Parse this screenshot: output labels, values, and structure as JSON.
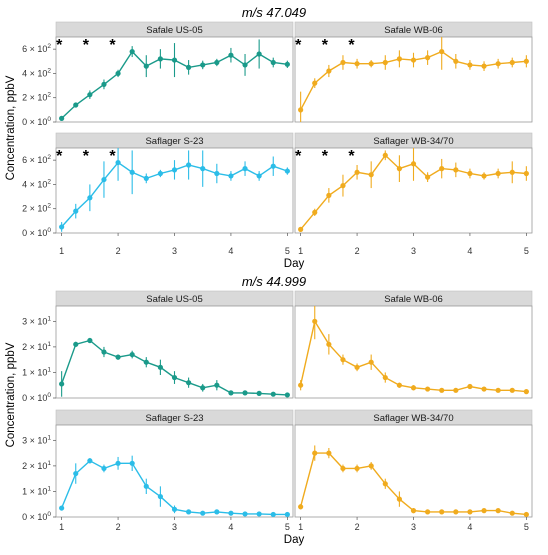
{
  "chart_data": [
    {
      "type": "line",
      "title": "m/s 47.049",
      "ylabel": "Concentration, ppbV",
      "xlabel": "Day",
      "x": [
        1,
        1.25,
        1.5,
        1.75,
        2,
        2.25,
        2.5,
        2.75,
        3,
        3.25,
        3.5,
        3.75,
        4,
        4.25,
        4.5,
        4.75,
        5
      ],
      "xticks": [
        "1",
        "2",
        "3",
        "4",
        "5"
      ],
      "ylim": [
        0,
        700
      ],
      "yticks": [
        {
          "value": 0,
          "base": "0 × 10",
          "exp": "0"
        },
        {
          "value": 200,
          "base": "2 × 10",
          "exp": "2"
        },
        {
          "value": 400,
          "base": "4 × 10",
          "exp": "2"
        },
        {
          "value": 600,
          "base": "6 × 10",
          "exp": "2"
        }
      ],
      "grid": false,
      "panels": [
        {
          "name": "Safale US-05",
          "color": "#1a9a8a",
          "stars": "* * *",
          "values": [
            30,
            140,
            225,
            310,
            400,
            580,
            460,
            520,
            510,
            450,
            470,
            490,
            550,
            470,
            560,
            490,
            475
          ],
          "errors": [
            10,
            20,
            35,
            40,
            30,
            45,
            90,
            80,
            140,
            60,
            35,
            30,
            60,
            90,
            120,
            40,
            30
          ]
        },
        {
          "name": "Safale WB-06",
          "color": "#f0ab1e",
          "stars": "* * *",
          "values": [
            100,
            320,
            420,
            490,
            480,
            480,
            490,
            520,
            510,
            530,
            580,
            500,
            470,
            460,
            480,
            490,
            500
          ],
          "errors": [
            150,
            40,
            50,
            60,
            40,
            30,
            60,
            70,
            60,
            60,
            150,
            60,
            40,
            40,
            40,
            40,
            50
          ]
        },
        {
          "name": "Saflager S-23",
          "color": "#2bbde8",
          "stars": "* * *",
          "values": [
            50,
            180,
            290,
            440,
            580,
            500,
            450,
            490,
            520,
            560,
            530,
            490,
            470,
            530,
            470,
            550,
            510
          ],
          "errors": [
            40,
            60,
            110,
            150,
            150,
            180,
            40,
            30,
            80,
            120,
            150,
            80,
            40,
            60,
            40,
            80,
            30
          ]
        },
        {
          "name": "Saflager WB-34/70",
          "color": "#f0ab1e",
          "stars": "* * *",
          "values": [
            30,
            170,
            310,
            390,
            500,
            480,
            640,
            530,
            570,
            460,
            530,
            520,
            490,
            470,
            490,
            500,
            490
          ],
          "errors": [
            10,
            30,
            60,
            90,
            60,
            110,
            40,
            110,
            140,
            40,
            80,
            60,
            40,
            30,
            40,
            90,
            60
          ]
        }
      ]
    },
    {
      "type": "line",
      "title": "m/s 44.999",
      "ylabel": "Concentration, ppbV",
      "xlabel": "Day",
      "x": [
        1,
        1.25,
        1.5,
        1.75,
        2,
        2.25,
        2.5,
        2.75,
        3,
        3.25,
        3.5,
        3.75,
        4,
        4.25,
        4.5,
        4.75,
        5
      ],
      "xticks": [
        "1",
        "2",
        "3",
        "4",
        "5"
      ],
      "ylim": [
        0,
        36
      ],
      "yticks": [
        {
          "value": 0,
          "base": "0 × 10",
          "exp": "0"
        },
        {
          "value": 10,
          "base": "1 × 10",
          "exp": "1"
        },
        {
          "value": 20,
          "base": "2 × 10",
          "exp": "1"
        },
        {
          "value": 30,
          "base": "3 × 10",
          "exp": "1"
        }
      ],
      "grid": false,
      "panels": [
        {
          "name": "Safale US-05",
          "color": "#1a9a8a",
          "stars": "",
          "values": [
            5.5,
            21,
            22.5,
            18,
            16,
            17,
            14,
            12,
            8,
            6,
            4,
            5,
            2,
            2,
            1.8,
            1.5,
            1.2
          ],
          "errors": [
            5,
            1,
            1,
            2,
            1,
            1.5,
            2,
            3,
            2.5,
            2,
            1.5,
            2,
            0.5,
            0.5,
            0.5,
            0.5,
            0.3
          ]
        },
        {
          "name": "Safale WB-06",
          "color": "#f0ab1e",
          "stars": "",
          "values": [
            5,
            30,
            21,
            15,
            12,
            14,
            8,
            5,
            4,
            3.5,
            3,
            3,
            4.5,
            3.5,
            3,
            3,
            2.5
          ],
          "errors": [
            2,
            7,
            4,
            2,
            1.5,
            3,
            2,
            1,
            1,
            0.5,
            0.5,
            0.5,
            0.8,
            0.5,
            0.5,
            0.5,
            0.5
          ]
        },
        {
          "name": "Saflager S-23",
          "color": "#2bbde8",
          "stars": "",
          "values": [
            3.5,
            17,
            22,
            19,
            21,
            21,
            12,
            8,
            3,
            2,
            1.5,
            2,
            1.5,
            1.2,
            1.2,
            1,
            1
          ],
          "errors": [
            1,
            4,
            1,
            1.5,
            2.5,
            3,
            3,
            4,
            1.5,
            0.5,
            0.5,
            0.5,
            0.3,
            0.3,
            0.3,
            0.3,
            0.3
          ]
        },
        {
          "name": "Saflager WB-34/70",
          "color": "#f0ab1e",
          "stars": "",
          "values": [
            4,
            25,
            25,
            19,
            19,
            20,
            13,
            7,
            2.5,
            2,
            2,
            2,
            2,
            2.5,
            2.5,
            1.5,
            1
          ],
          "errors": [
            1,
            3,
            2,
            1.5,
            1.5,
            1.5,
            2,
            3,
            1,
            0.5,
            0.5,
            0.5,
            0.5,
            0.5,
            0.5,
            0.5,
            0.3
          ]
        }
      ]
    }
  ]
}
